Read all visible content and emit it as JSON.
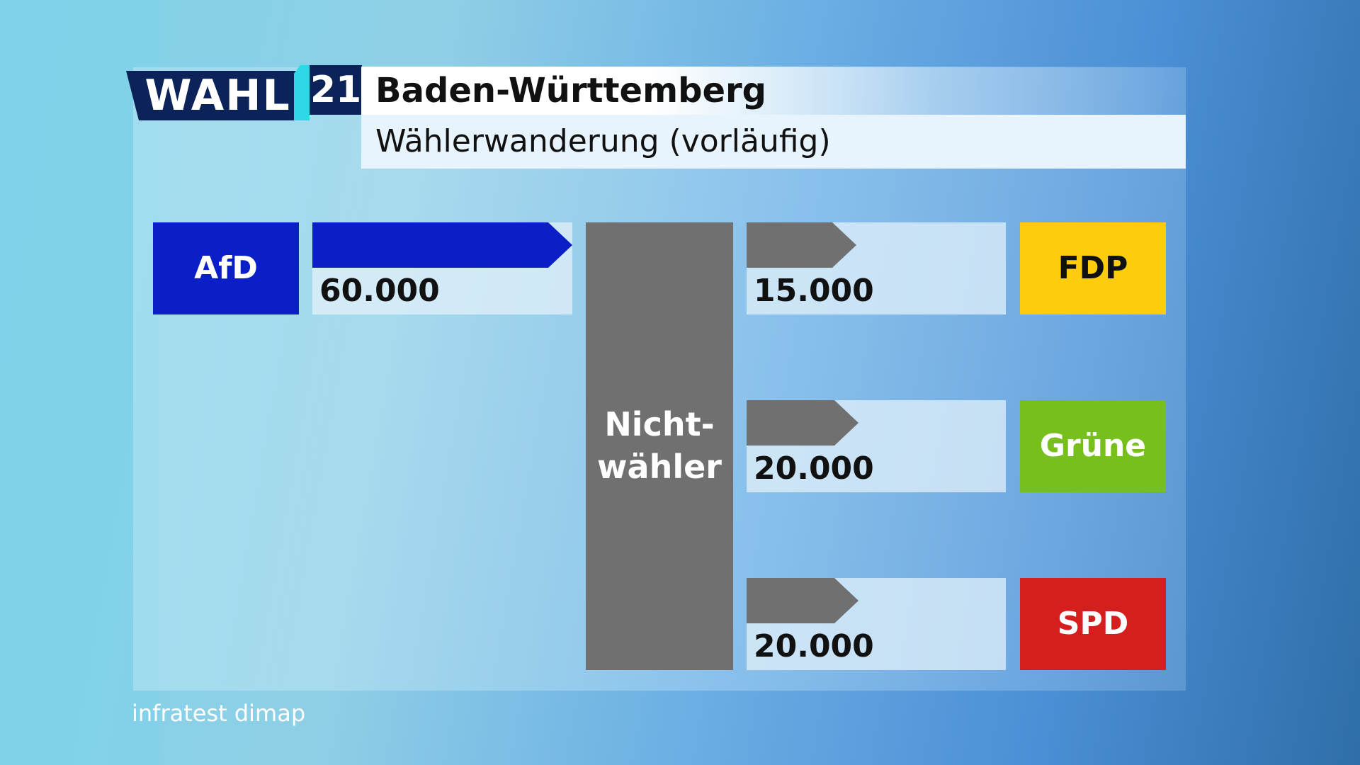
{
  "header": {
    "logo_wahl": "WAHL",
    "logo_year": "21",
    "title": "Baden-Württemberg",
    "subtitle": "Wählerwanderung (vorläufig)"
  },
  "center": {
    "label_line1": "Nicht-",
    "label_line2": "wähler"
  },
  "flows": [
    {
      "from": "AfD",
      "to": "Nicht-wähler",
      "value": 60000,
      "value_label": "60.000",
      "color": "#0a1fc6"
    },
    {
      "from": "Nicht-wähler",
      "to": "FDP",
      "value": 15000,
      "value_label": "15.000",
      "color": "#707070"
    },
    {
      "from": "Nicht-wähler",
      "to": "Grüne",
      "value": 20000,
      "value_label": "20.000",
      "color": "#707070"
    },
    {
      "from": "Nicht-wähler",
      "to": "SPD",
      "value": 20000,
      "value_label": "20.000",
      "color": "#707070"
    }
  ],
  "parties": {
    "afd": {
      "label": "AfD",
      "color": "#0a1fc6"
    },
    "fdp": {
      "label": "FDP",
      "color": "#fccc0d"
    },
    "gruene": {
      "label": "Grüne",
      "color": "#76bf1c"
    },
    "spd": {
      "label": "SPD",
      "color": "#d51f1f"
    }
  },
  "source": "infratest dimap",
  "icons": {
    "flow_arrow": "arrow-right-icon"
  }
}
